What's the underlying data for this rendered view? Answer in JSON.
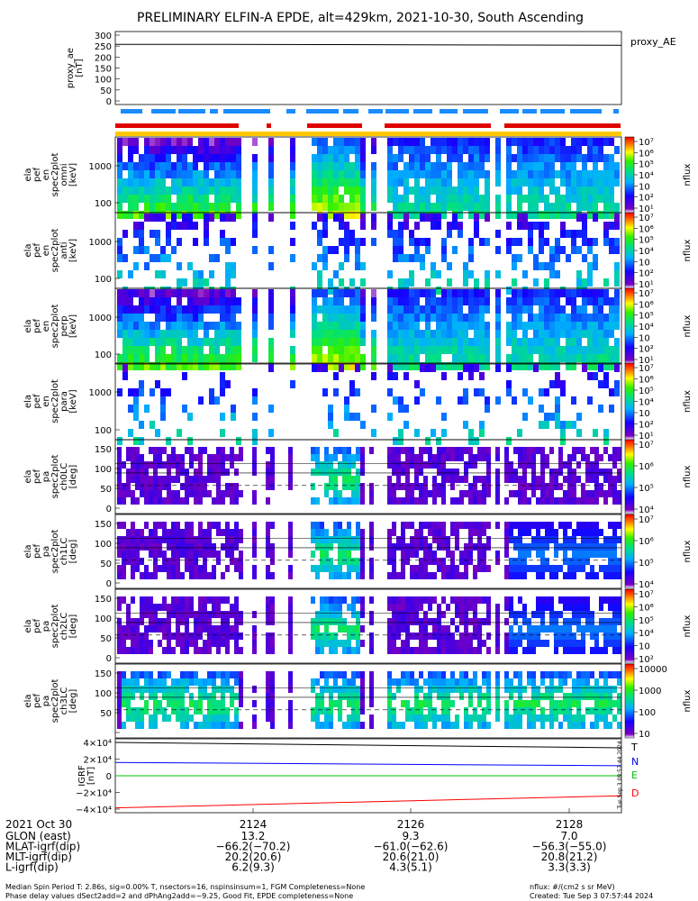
{
  "title": "PRELIMINARY ELFIN-A EPDE, alt=429km, 2021-10-30, South Ascending",
  "ae_panel": {
    "ylabel": [
      "proxy_ae",
      "[nT]"
    ],
    "yticks": [
      "300",
      "250",
      "200",
      "150",
      "100",
      "50",
      "0"
    ],
    "legend": "proxy_AE",
    "ylim": [
      0,
      300
    ],
    "values": [
      258,
      258,
      257,
      256,
      255,
      254
    ]
  },
  "energy_panels": [
    {
      "ylabel": [
        "ela",
        "pef",
        "en",
        "spec2plot",
        "omni",
        "[keV]"
      ],
      "cbar_label": "nflux",
      "cbar_ticks": [
        "10⁷",
        "10⁶",
        "10⁵",
        "10⁴",
        "10⁳",
        "10²",
        "10¹"
      ],
      "yticks": [
        "1000",
        "100"
      ],
      "density": 0.92
    },
    {
      "ylabel": [
        "ela",
        "pef",
        "en",
        "spec2plot",
        "anti",
        "[keV]"
      ],
      "cbar_label": "nflux",
      "cbar_ticks": [
        "10⁷",
        "10⁶",
        "10⁵",
        "10⁴",
        "10⁳",
        "10²",
        "10¹"
      ],
      "yticks": [
        "1000",
        "100"
      ],
      "density": 0.42
    },
    {
      "ylabel": [
        "ela",
        "pef",
        "en",
        "spec2plot",
        "perp",
        "[keV]"
      ],
      "cbar_label": "nflux",
      "cbar_ticks": [
        "10⁷",
        "10⁶",
        "10⁵",
        "10⁴",
        "10⁳",
        "10²",
        "10¹"
      ],
      "yticks": [
        "1000",
        "100"
      ],
      "density": 0.9
    },
    {
      "ylabel": [
        "ela",
        "pef",
        "en",
        "spec2plot",
        "para",
        "[keV]"
      ],
      "cbar_label": "nflux",
      "cbar_ticks": [
        "10⁷",
        "10⁶",
        "10⁵",
        "10⁴",
        "10⁳",
        "10²",
        "10¹"
      ],
      "yticks": [
        "1000",
        "100"
      ],
      "density": 0.22
    }
  ],
  "pitch_panels": [
    {
      "ylabel": [
        "ela",
        "pef",
        "pa",
        "spec2plot",
        "ch0LC",
        "[deg]"
      ],
      "cbar_label": "nflux",
      "cbar_ticks": [
        "10⁷",
        "10⁶",
        "10⁵",
        "10⁴"
      ],
      "yticks": [
        "150",
        "100",
        "50",
        "0"
      ]
    },
    {
      "ylabel": [
        "ela",
        "pef",
        "pa",
        "spec2plot",
        "ch1LC",
        "[deg]"
      ],
      "cbar_label": "nflux",
      "cbar_ticks": [
        "10⁷",
        "10⁶",
        "10⁵",
        "10⁴"
      ],
      "yticks": [
        "150",
        "100",
        "50",
        "0"
      ]
    },
    {
      "ylabel": [
        "ela",
        "pef",
        "pa",
        "spec2plot",
        "ch2LC",
        "[deg]"
      ],
      "cbar_label": "nflux",
      "cbar_ticks": [
        "10⁷",
        "10⁶",
        "10⁵",
        "10⁴",
        "10⁳",
        "10²"
      ],
      "yticks": [
        "150",
        "100",
        "50",
        "0"
      ]
    },
    {
      "ylabel": [
        "ela",
        "pef",
        "pa",
        "spec2plot",
        "ch3LC",
        "[deg]"
      ],
      "cbar_label": "nflux",
      "cbar_ticks": [
        "10000",
        "1000",
        "100",
        "10"
      ],
      "yticks": [
        "150",
        "100",
        "50",
        ""
      ]
    }
  ],
  "igrf_panel": {
    "ylabel": [
      "IGRF",
      "[nT]"
    ],
    "yticks": [
      "4×10⁴",
      "2×10⁴",
      "0",
      "−2×10⁴",
      "−4×10⁴"
    ],
    "components": [
      {
        "name": "T",
        "color": "#000000",
        "start": 40000,
        "end": 33500
      },
      {
        "name": "N",
        "color": "#0000ff",
        "start": 16000,
        "end": 12000
      },
      {
        "name": "E",
        "color": "#00c000",
        "start": 0,
        "end": 0
      },
      {
        "name": "D",
        "color": "#ff0000",
        "start": -38500,
        "end": -24000
      }
    ],
    "stamp": "Tue Sep  3 09:57:44 2024"
  },
  "xaxis": {
    "date": "2021 Oct 30",
    "ticks": [
      "2124",
      "2126",
      "2128"
    ],
    "rows": [
      {
        "label": "GLON (east)",
        "values": [
          "13.2",
          "9.3",
          "7.0"
        ]
      },
      {
        "label": "MLAT-igrf(dip)",
        "values": [
          "−66.2(−70.2)",
          "−61.0(−62.6)",
          "−56.3(−55.0)"
        ]
      },
      {
        "label": "MLT-igrf(dip)",
        "values": [
          "20.2(20.6)",
          "20.6(21.0)",
          "20.8(21.2)"
        ]
      },
      {
        "label": "L-igrf(dip)",
        "values": [
          "6.2(9.3)",
          "4.3(5.1)",
          "3.3(3.3)"
        ]
      }
    ]
  },
  "footer": {
    "line1": "Median Spin Period T: 2.86s, sig=0.00% T, nsectors=16, nspinsinsum=1, FGM Completeness=None",
    "line2": "Phase delay values dSect2add=2 and dPhAng2add=−9.25, Good Fit, EPDE completeness=None",
    "units": "nflux: #/(cm2 s sr MeV)",
    "created": "Created: Tue Sep  3 07:57:44 2024"
  },
  "chart_data": {
    "type": "heatmap",
    "title": "PRELIMINARY ELFIN-A EPDE, alt=429km, 2021-10-30, South Ascending",
    "x_ticks": [
      "2124",
      "2126",
      "2128"
    ],
    "series": [
      {
        "name": "proxy_AE",
        "ylim": [
          0,
          300
        ],
        "approx_values": [
          258,
          258,
          257,
          256,
          255,
          254
        ]
      },
      {
        "name": "IGRF T",
        "ylim": [
          -40000,
          40000
        ],
        "start": 40000,
        "end": 33500
      },
      {
        "name": "IGRF N",
        "start": 16000,
        "end": 12000
      },
      {
        "name": "IGRF E",
        "start": 0,
        "end": 0
      },
      {
        "name": "IGRF D",
        "start": -38500,
        "end": -24000
      }
    ],
    "colorbar_unit": "nflux: #/(cm2 s sr MeV)"
  }
}
